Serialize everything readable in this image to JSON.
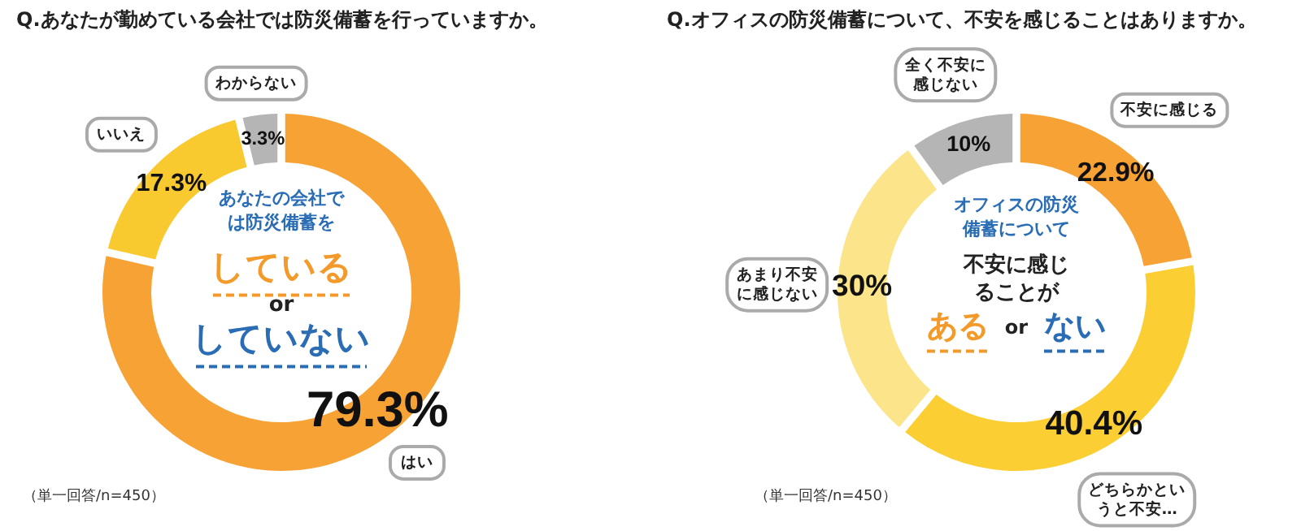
{
  "chart_data": [
    {
      "type": "donut",
      "title": "Q.あなたが勤めている会社では防災備蓄を行っていますか。",
      "categories": [
        "はい",
        "いいえ",
        "わからない"
      ],
      "values": [
        79.3,
        17.3,
        3.3
      ],
      "colors": [
        "#f7a234",
        "#f9c930",
        "#b5b5b5"
      ],
      "value_labels": [
        "79.3%",
        "17.3%",
        "3.3%"
      ],
      "annotations": [
        "あなたの会社では防災備蓄を",
        "している",
        "or",
        "していない",
        "（単一回答/n=450）"
      ],
      "legend": false
    },
    {
      "type": "donut",
      "title": "Q.オフィスの防災備蓄について、不安を感じることはありますか。",
      "categories": [
        "不安に感じる",
        "どちらかというと不安…",
        "あまり不安に感じない",
        "全く不安に感じない"
      ],
      "values": [
        22.9,
        40.4,
        30,
        10
      ],
      "colors": [
        "#f7a234",
        "#fbcf33",
        "#fbe48a",
        "#b5b5b5"
      ],
      "value_labels": [
        "22.9%",
        "40.4%",
        "30%",
        "10%"
      ],
      "annotations": [
        "オフィスの防災備蓄について",
        "不安に感じることが",
        "ある",
        "or",
        "ない",
        "（単一回答/n=450）"
      ],
      "legend": false
    }
  ]
}
